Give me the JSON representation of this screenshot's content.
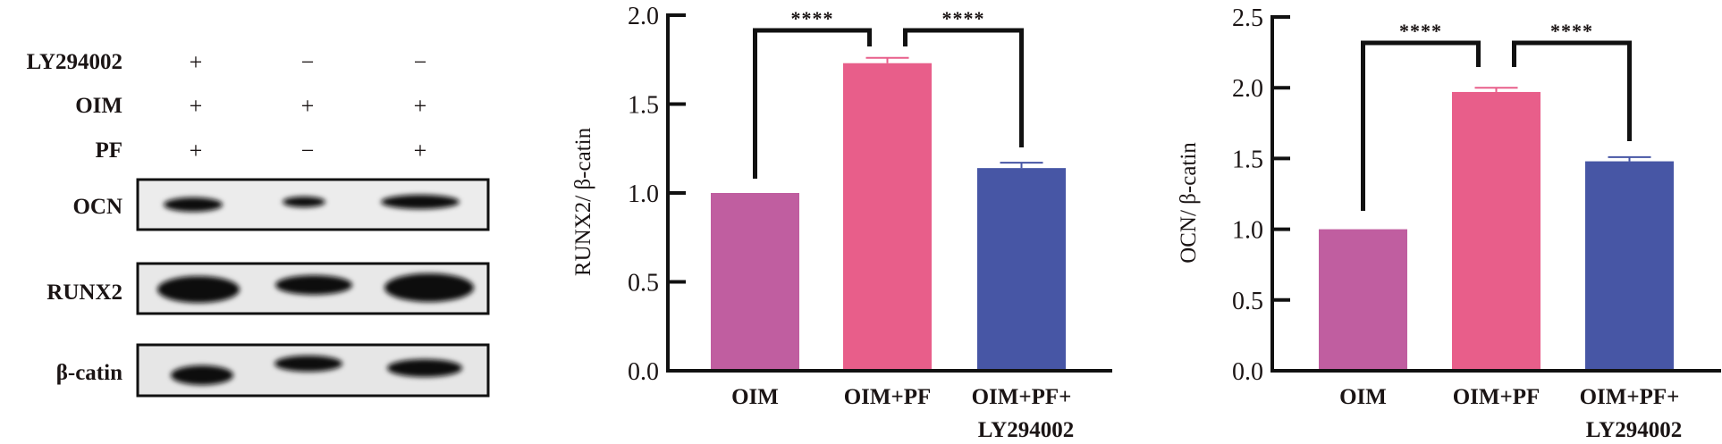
{
  "blot": {
    "conditions": [
      {
        "label": "LY294002",
        "signs": [
          "+",
          "−",
          "−"
        ]
      },
      {
        "label": "OIM",
        "signs": [
          "+",
          "+",
          "+"
        ]
      },
      {
        "label": "PF",
        "signs": [
          "+",
          "−",
          "+"
        ]
      }
    ],
    "proteins": [
      "OCN",
      "RUNX2",
      "β-catin"
    ]
  },
  "chart_data": [
    {
      "type": "bar",
      "ylabel": "RUNX2/ β-catin",
      "ylim": [
        0,
        2.0
      ],
      "yticks": [
        "0.0",
        "0.5",
        "1.0",
        "1.5",
        "2.0"
      ],
      "categories": [
        [
          "OIM"
        ],
        [
          "OIM+PF"
        ],
        [
          "OIM+PF+",
          "LY294002"
        ]
      ],
      "values": [
        1.0,
        1.73,
        1.14
      ],
      "errors": [
        0,
        0.03,
        0.03
      ],
      "colors": [
        "#c05ea0",
        "#e85e8a",
        "#4756a5"
      ],
      "significance": [
        {
          "from": 0,
          "to": 1,
          "label": "****"
        },
        {
          "from": 1,
          "to": 2,
          "label": "****"
        }
      ]
    },
    {
      "type": "bar",
      "ylabel": "OCN/ β-catin",
      "ylim": [
        0,
        2.5
      ],
      "yticks": [
        "0.0",
        "0.5",
        "1.0",
        "1.5",
        "2.0",
        "2.5"
      ],
      "categories": [
        [
          "OIM"
        ],
        [
          "OIM+PF"
        ],
        [
          "OIM+PF+",
          "LY294002"
        ]
      ],
      "values": [
        1.0,
        1.97,
        1.48
      ],
      "errors": [
        0,
        0.03,
        0.03
      ],
      "colors": [
        "#c05ea0",
        "#e85e8a",
        "#4756a5"
      ],
      "significance": [
        {
          "from": 0,
          "to": 1,
          "label": "****"
        },
        {
          "from": 1,
          "to": 2,
          "label": "****"
        }
      ]
    }
  ]
}
